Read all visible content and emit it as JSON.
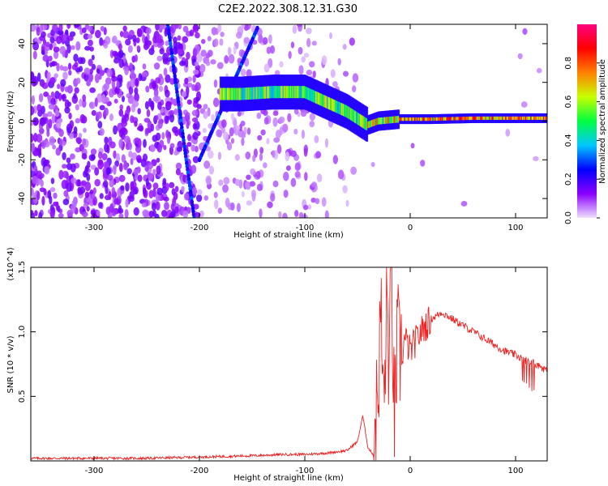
{
  "title": "C2E2.2022.308.12.31.G30",
  "chart_data": [
    {
      "type": "heatmap",
      "xlabel": "Height of straight line (km)",
      "ylabel": "Frequency (Hz)",
      "xlim": [
        -360,
        130
      ],
      "ylim": [
        -50,
        50
      ],
      "xticks": [
        -300,
        -200,
        -100,
        0,
        100
      ],
      "xtick_labels": [
        "-300",
        "-200",
        "-100",
        "0",
        "100"
      ],
      "yticks": [
        -40,
        -20,
        0,
        20,
        40
      ],
      "ytick_labels": [
        "-40",
        "-20",
        "0",
        "20",
        "40"
      ],
      "colorbar": {
        "label": "Normalized spectral amplitude",
        "range": [
          0.0,
          1.0
        ],
        "ticks": [
          0.0,
          0.2,
          0.4,
          0.6,
          0.8
        ],
        "tick_labels": [
          "0.0",
          "0.2",
          "0.4",
          "0.6",
          "0.8"
        ],
        "colors": [
          "#f0e0ff",
          "#8a00ff",
          "#0000ff",
          "#00c8ff",
          "#00ff40",
          "#c8ff00",
          "#ff8000",
          "#ff0000",
          "#ff0080"
        ]
      },
      "features": [
        {
          "name": "oblique_line",
          "points": [
            [
              -230,
              50
            ],
            [
              -205,
              -50
            ]
          ]
        },
        {
          "name": "oblique_line",
          "points": [
            [
              -145,
              48
            ],
            [
              -200,
              -20
            ]
          ]
        },
        {
          "name": "signal_ridge",
          "points": [
            [
              -180,
              14
            ],
            [
              -160,
              14
            ],
            [
              -130,
              15
            ],
            [
              -100,
              15
            ],
            [
              -80,
              10
            ],
            [
              -60,
              5
            ],
            [
              -40,
              -2
            ],
            [
              -30,
              0
            ],
            [
              -10,
              1
            ],
            [
              20,
              1
            ],
            [
              60,
              1.5
            ],
            [
              130,
              1.5
            ]
          ]
        }
      ],
      "grid": false
    },
    {
      "type": "line",
      "xlabel": "Height of straight line (km)",
      "ylabel": "SNR (10 * v/v)",
      "y_multiplier": "(x10^4)",
      "xlim": [
        -360,
        130
      ],
      "ylim": [
        0,
        1.5
      ],
      "xticks": [
        -300,
        -200,
        -100,
        0,
        100
      ],
      "xtick_labels": [
        "-300",
        "-200",
        "-100",
        "0",
        "100"
      ],
      "yticks": [
        0.5,
        1.0,
        1.5
      ],
      "ytick_labels": [
        "0.5",
        "1.0",
        "1.5"
      ],
      "color": "#ee2222",
      "series": [
        {
          "x": [
            -360,
            -300,
            -250,
            -200,
            -150,
            -120,
            -100,
            -80,
            -60,
            -50,
            -45,
            -40,
            -35,
            -30,
            -28,
            -25,
            -22,
            -20,
            -18,
            -15,
            -12,
            -10,
            -5,
            0,
            10,
            20,
            30,
            40,
            50,
            60,
            70,
            80,
            90,
            100,
            110,
            120,
            130
          ],
          "values": [
            0.02,
            0.02,
            0.02,
            0.03,
            0.04,
            0.05,
            0.05,
            0.06,
            0.08,
            0.15,
            0.35,
            0.1,
            0.05,
            0.5,
            1.1,
            0.3,
            1.2,
            0.6,
            1.45,
            0.2,
            0.9,
            0.7,
            0.95,
            0.85,
            1.0,
            1.1,
            1.15,
            1.1,
            1.05,
            1.0,
            0.95,
            0.9,
            0.85,
            0.82,
            0.78,
            0.75,
            0.7
          ]
        }
      ],
      "grid": false
    }
  ]
}
